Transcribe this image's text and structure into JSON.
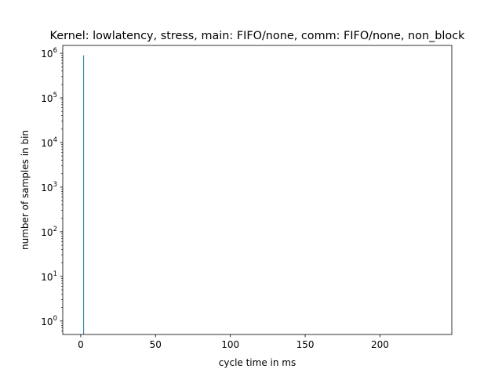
{
  "chart_data": {
    "type": "bar",
    "title": "Kernel: lowlatency, stress, main: FIFO/none, comm: FIFO/none, non_block",
    "xlabel": "cycle time in ms",
    "ylabel": "number of samples in bin",
    "yscale": "log",
    "xlim": [
      -12,
      248
    ],
    "ylim": [
      0.5,
      1500000
    ],
    "xticks": [
      0,
      50,
      100,
      150,
      200
    ],
    "xtick_labels": [
      "0",
      "50",
      "100",
      "150",
      "200"
    ],
    "yticks": [
      1,
      10,
      100,
      1000,
      10000,
      100000,
      1000000
    ],
    "ytick_labels": [
      {
        "base": "10",
        "exp": "0"
      },
      {
        "base": "10",
        "exp": "1"
      },
      {
        "base": "10",
        "exp": "2"
      },
      {
        "base": "10",
        "exp": "3"
      },
      {
        "base": "10",
        "exp": "4"
      },
      {
        "base": "10",
        "exp": "5"
      },
      {
        "base": "10",
        "exp": "6"
      }
    ],
    "grid": false,
    "series": [
      {
        "name": "histogram",
        "color": "#1f77b4",
        "bins": [
          {
            "x": 1.9,
            "width": 0.4,
            "value": 900000
          }
        ]
      }
    ]
  }
}
